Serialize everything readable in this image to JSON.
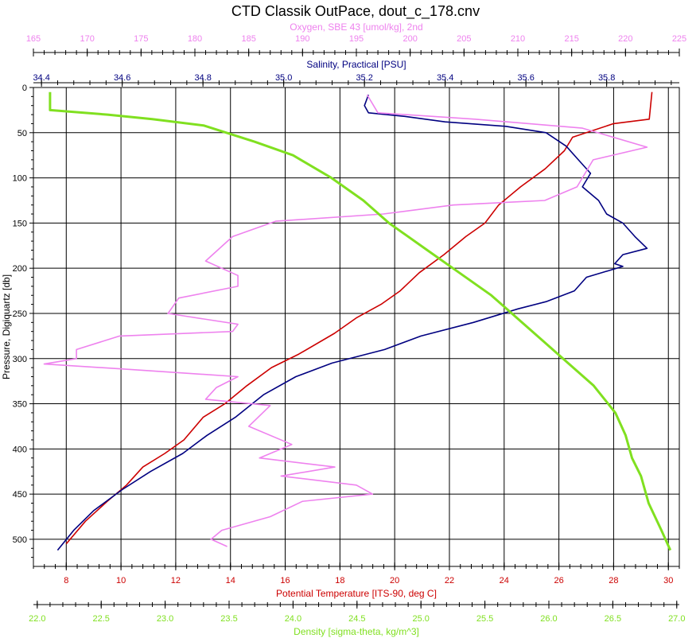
{
  "chart_data": {
    "type": "line",
    "title": "CTD Classik OutPace, dout_c_178.cnv",
    "grid": true,
    "y_axis": {
      "label": "Pressure, Digiquartz [db]",
      "range": [
        0,
        530
      ],
      "inverted": true,
      "ticks": [
        0,
        50,
        100,
        150,
        200,
        250,
        300,
        350,
        400,
        450,
        500
      ]
    },
    "x_axes": [
      {
        "id": "oxygen",
        "label": "Oxygen, SBE 43 [umol/kg], 2nd",
        "position": "top",
        "color": "#ee82ee",
        "range": [
          165,
          225
        ],
        "ticks": [
          165,
          170,
          175,
          180,
          185,
          190,
          195,
          200,
          205,
          210,
          215,
          220,
          225
        ]
      },
      {
        "id": "salinity",
        "label": "Salinity, Practical [PSU]",
        "position": "top",
        "color": "#000080",
        "range": [
          34.38,
          35.98
        ],
        "ticks": [
          "34.4",
          "34.6",
          "34.8",
          "35.0",
          "35.2",
          "35.4",
          "35.6",
          "35.8"
        ]
      },
      {
        "id": "temperature",
        "label": "Potential Temperature [ITS-90, deg C]",
        "position": "bottom",
        "color": "#cc0000",
        "range": [
          6.8,
          30.4
        ],
        "ticks": [
          8,
          10,
          12,
          14,
          16,
          18,
          20,
          22,
          24,
          26,
          28,
          30
        ]
      },
      {
        "id": "density",
        "label": "Density [sigma-theta, kg/m^3]",
        "position": "bottom",
        "color": "#80e020",
        "range": [
          21.97,
          27.02
        ],
        "ticks": [
          "22.0",
          "22.5",
          "23.0",
          "23.5",
          "24.0",
          "24.5",
          "25.0",
          "25.5",
          "26.0",
          "26.5",
          "27.0"
        ]
      }
    ],
    "series": [
      {
        "axis": "temperature",
        "color": "#cc0000",
        "points": [
          [
            29.4,
            5
          ],
          [
            29.3,
            35
          ],
          [
            28.0,
            40
          ],
          [
            26.5,
            55
          ],
          [
            26.2,
            70
          ],
          [
            25.5,
            90
          ],
          [
            24.6,
            110
          ],
          [
            23.8,
            130
          ],
          [
            23.3,
            150
          ],
          [
            22.6,
            165
          ],
          [
            21.8,
            185
          ],
          [
            20.9,
            205
          ],
          [
            20.2,
            225
          ],
          [
            19.5,
            240
          ],
          [
            18.6,
            255
          ],
          [
            17.8,
            272
          ],
          [
            16.5,
            295
          ],
          [
            15.5,
            310
          ],
          [
            14.6,
            330
          ],
          [
            13.8,
            350
          ],
          [
            13.0,
            365
          ],
          [
            12.3,
            390
          ],
          [
            11.6,
            405
          ],
          [
            10.8,
            420
          ],
          [
            10.2,
            440
          ],
          [
            9.5,
            458
          ],
          [
            8.7,
            480
          ],
          [
            8.0,
            505
          ]
        ]
      },
      {
        "axis": "salinity",
        "color": "#000080",
        "points": [
          [
            35.21,
            8
          ],
          [
            35.2,
            20
          ],
          [
            35.21,
            28
          ],
          [
            35.3,
            32
          ],
          [
            35.4,
            38
          ],
          [
            35.55,
            43
          ],
          [
            35.65,
            50
          ],
          [
            35.7,
            65
          ],
          [
            35.73,
            80
          ],
          [
            35.76,
            95
          ],
          [
            35.74,
            110
          ],
          [
            35.78,
            125
          ],
          [
            35.8,
            140
          ],
          [
            35.84,
            150
          ],
          [
            35.87,
            165
          ],
          [
            35.9,
            178
          ],
          [
            35.84,
            185
          ],
          [
            35.82,
            195
          ],
          [
            35.84,
            198
          ],
          [
            35.75,
            210
          ],
          [
            35.72,
            225
          ],
          [
            35.65,
            237
          ],
          [
            35.58,
            245
          ],
          [
            35.47,
            260
          ],
          [
            35.34,
            275
          ],
          [
            35.25,
            290
          ],
          [
            35.12,
            305
          ],
          [
            35.03,
            320
          ],
          [
            34.95,
            340
          ],
          [
            34.88,
            365
          ],
          [
            34.81,
            385
          ],
          [
            34.75,
            405
          ],
          [
            34.67,
            425
          ],
          [
            34.6,
            445
          ],
          [
            34.53,
            468
          ],
          [
            34.48,
            490
          ],
          [
            34.44,
            512
          ]
        ]
      },
      {
        "axis": "oxygen",
        "color": "#ee82ee",
        "points": [
          [
            196.0,
            8
          ],
          [
            197.0,
            28
          ],
          [
            206.0,
            35
          ],
          [
            216.0,
            45
          ],
          [
            222.0,
            66
          ],
          [
            217.0,
            80
          ],
          [
            215.5,
            110
          ],
          [
            212.5,
            125
          ],
          [
            204.0,
            130
          ],
          [
            197.5,
            140
          ],
          [
            187.5,
            148
          ],
          [
            183.5,
            165
          ],
          [
            181.0,
            192
          ],
          [
            184.0,
            208
          ],
          [
            184.0,
            220
          ],
          [
            178.5,
            233
          ],
          [
            177.5,
            250
          ],
          [
            184.0,
            262
          ],
          [
            183.5,
            270
          ],
          [
            173.0,
            275
          ],
          [
            169.0,
            290
          ],
          [
            169.0,
            300
          ],
          [
            166.0,
            306
          ],
          [
            174.0,
            312
          ],
          [
            184.0,
            320
          ],
          [
            182.0,
            332
          ],
          [
            181.0,
            345
          ],
          [
            187.0,
            352
          ],
          [
            185.0,
            375
          ],
          [
            189.0,
            395
          ],
          [
            186.0,
            410
          ],
          [
            193.0,
            420
          ],
          [
            188.0,
            430
          ],
          [
            195.0,
            440
          ],
          [
            196.5,
            450
          ],
          [
            190.0,
            458
          ],
          [
            187.0,
            475
          ],
          [
            182.5,
            490
          ],
          [
            181.5,
            500
          ],
          [
            183.0,
            508
          ]
        ]
      },
      {
        "axis": "density",
        "color": "#80e020",
        "points": [
          [
            22.1,
            5
          ],
          [
            22.1,
            25
          ],
          [
            22.55,
            30
          ],
          [
            22.9,
            35
          ],
          [
            23.3,
            42
          ],
          [
            23.7,
            60
          ],
          [
            24.0,
            75
          ],
          [
            24.3,
            100
          ],
          [
            24.55,
            125
          ],
          [
            24.75,
            150
          ],
          [
            25.05,
            180
          ],
          [
            25.25,
            200
          ],
          [
            25.55,
            230
          ],
          [
            25.75,
            255
          ],
          [
            25.95,
            280
          ],
          [
            26.15,
            305
          ],
          [
            26.35,
            330
          ],
          [
            26.52,
            360
          ],
          [
            26.6,
            385
          ],
          [
            26.65,
            410
          ],
          [
            26.72,
            430
          ],
          [
            26.78,
            460
          ],
          [
            26.88,
            490
          ],
          [
            26.95,
            512
          ]
        ]
      }
    ]
  }
}
